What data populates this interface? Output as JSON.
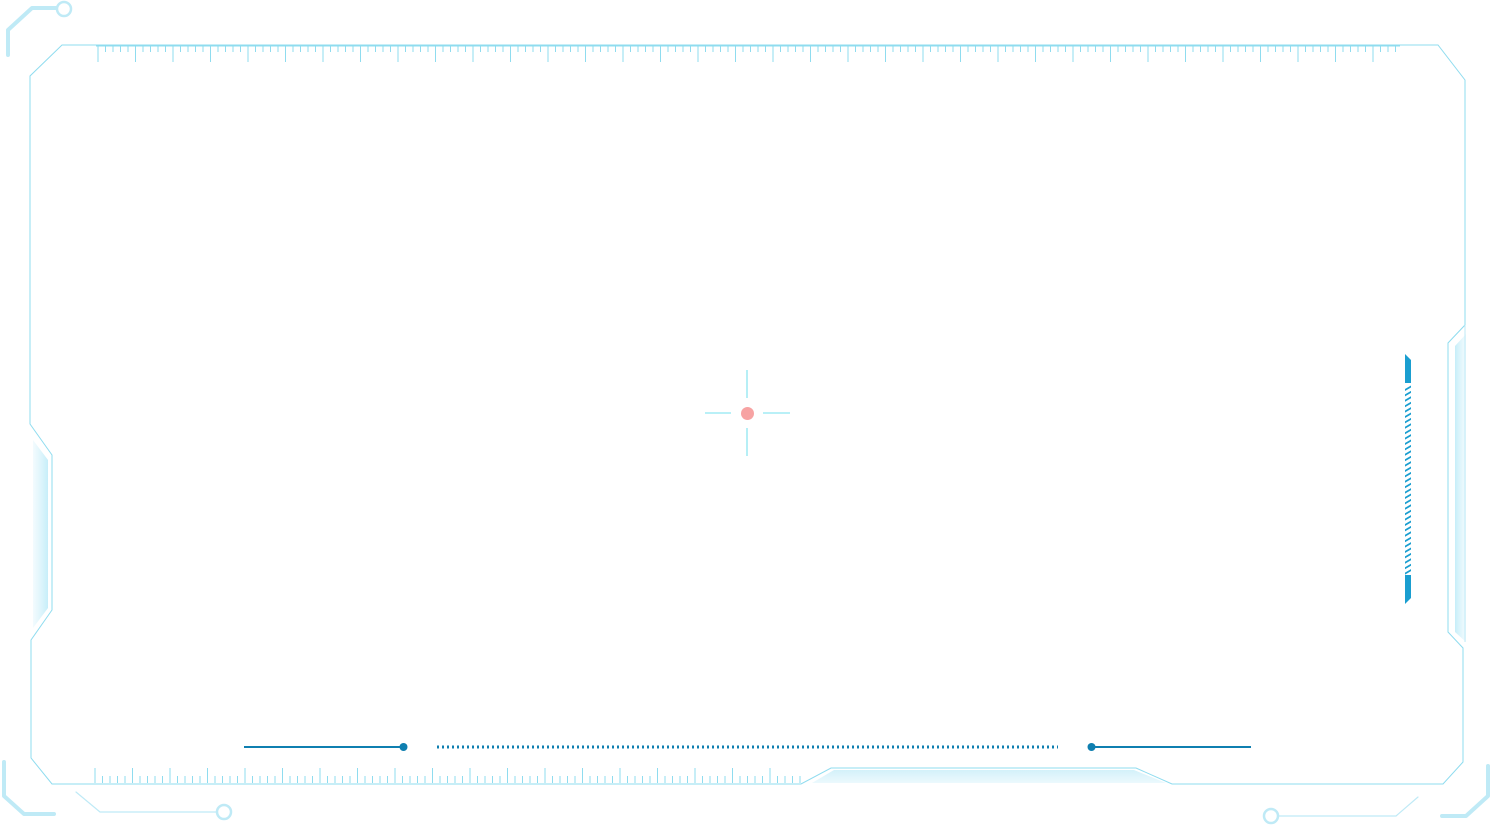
{
  "frame": {
    "colors": {
      "outline": "#8fdcef",
      "outline_light": "#bfeaf6",
      "ruler_tick": "#8fdcef",
      "panel_fill": "#e8f8fd",
      "panel_fill_light": "#d6f2fb",
      "accent_blue": "#0f7fb0",
      "stripe_blue": "#1a9ed0",
      "crosshair_line": "#8fe6f2",
      "target_dot": "#f7a3a3"
    },
    "icons": {
      "crosshair": "crosshair-icon",
      "target_dot": "target-dot-icon",
      "corner_node": "circle-node-icon"
    }
  }
}
